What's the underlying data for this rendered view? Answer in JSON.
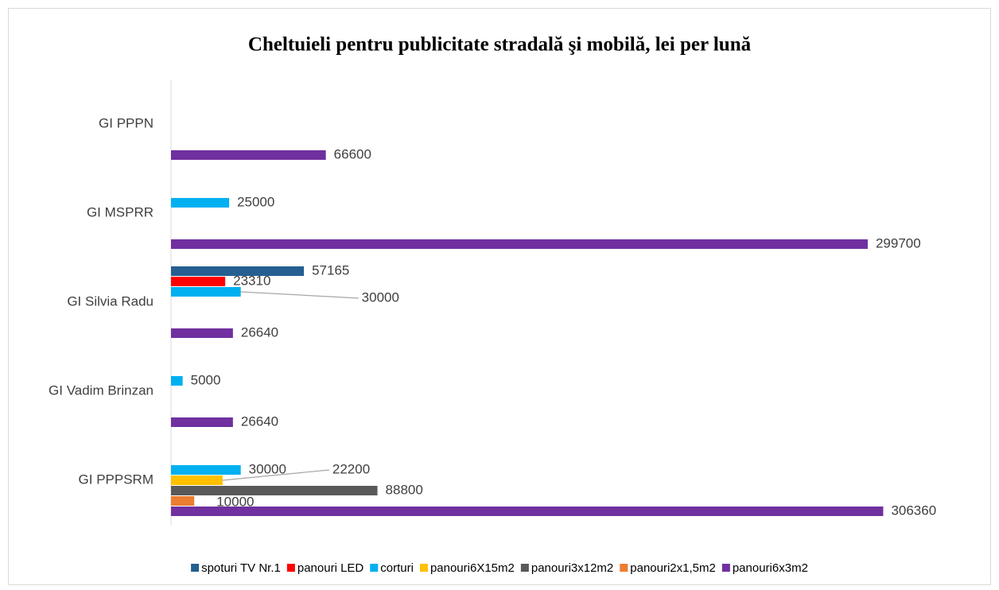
{
  "chart_data": {
    "type": "bar",
    "orientation": "horizontal",
    "title": "Cheltuieli pentru publicitate stradală şi mobilă, lei per lună",
    "categories": [
      "GI PPPSRM",
      "GI Vadim Brinzan",
      "GI Silvia Radu",
      "GI MSPRR",
      "GI PPPN"
    ],
    "series": [
      {
        "name": "spoturi TV Nr.1",
        "color": "#255e91",
        "values": [
          null,
          null,
          57165,
          null,
          null
        ]
      },
      {
        "name": "panouri LED",
        "color": "#ff0000",
        "values": [
          null,
          null,
          23310,
          null,
          null
        ]
      },
      {
        "name": "corturi",
        "color": "#00b0f0",
        "values": [
          30000,
          5000,
          30000,
          25000,
          null
        ]
      },
      {
        "name": "panouri6X15m2",
        "color": "#ffc000",
        "values": [
          22200,
          null,
          null,
          null,
          null
        ]
      },
      {
        "name": "panouri3x12m2",
        "color": "#595959",
        "values": [
          88800,
          null,
          null,
          null,
          null
        ]
      },
      {
        "name": "panouri2x1,5m2",
        "color": "#ed7d31",
        "values": [
          10000,
          null,
          null,
          null,
          null
        ]
      },
      {
        "name": "panouri6x3m2",
        "color": "#7030a0",
        "values": [
          306360,
          26640,
          26640,
          299700,
          66600
        ]
      }
    ],
    "xlim": [
      0,
      350000
    ],
    "legend": "bottom"
  }
}
